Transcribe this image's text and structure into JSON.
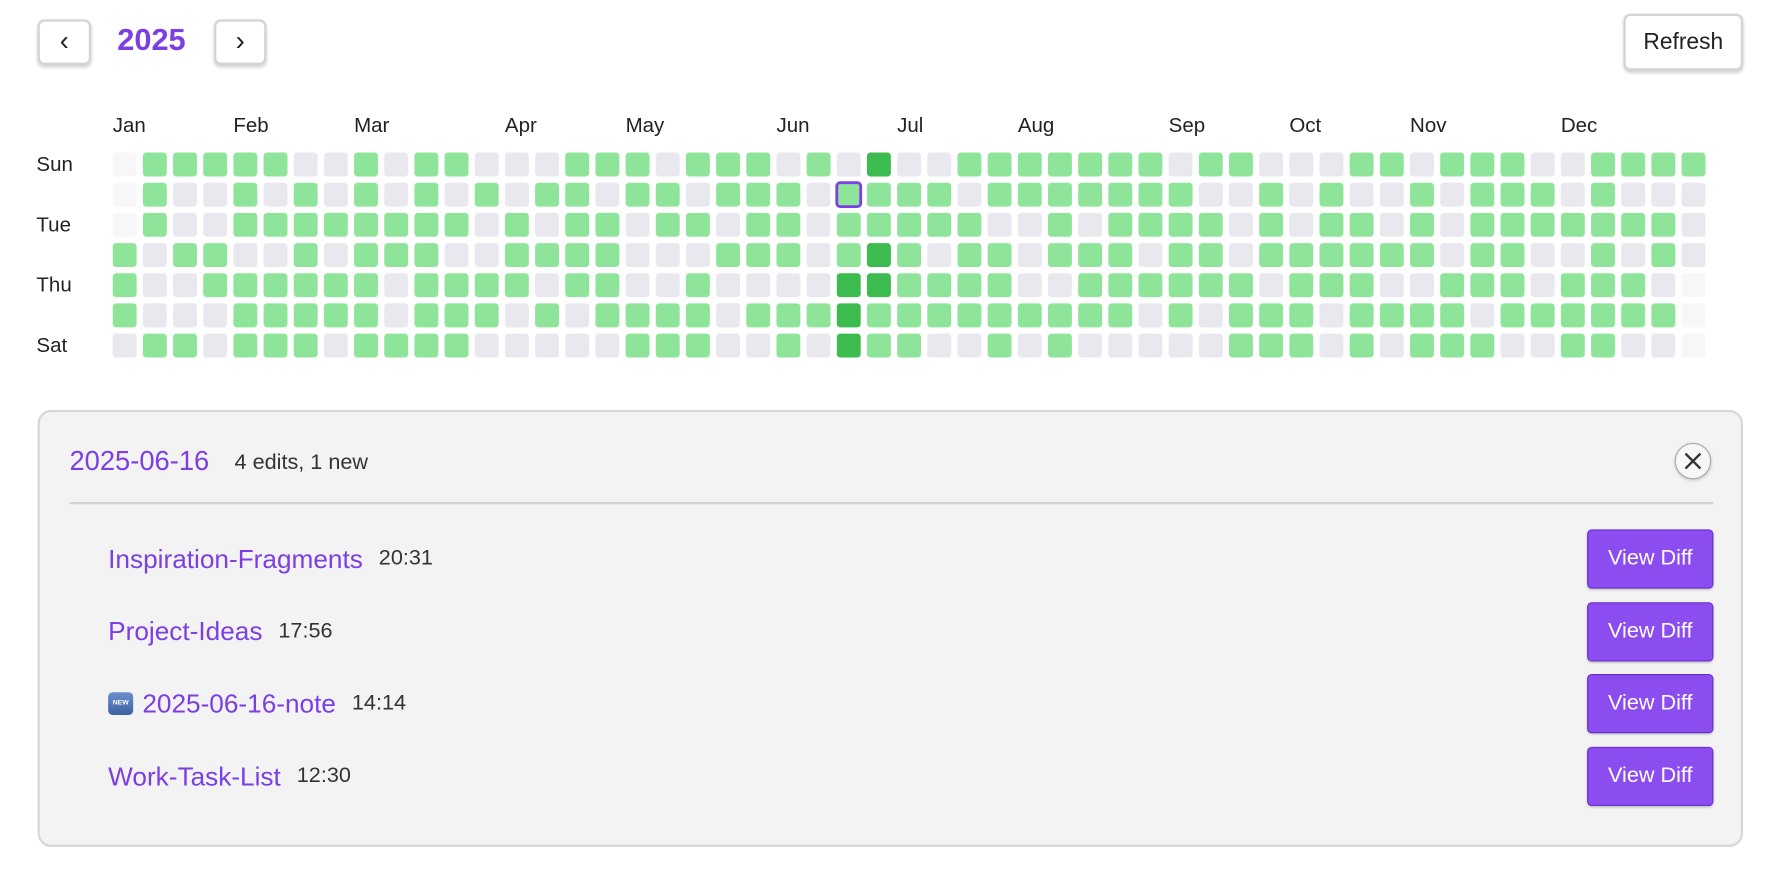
{
  "header": {
    "year": 2025,
    "refresh_label": "Refresh"
  },
  "heatmap": {
    "months": [
      "Jan",
      "Feb",
      "Mar",
      "Apr",
      "May",
      "Jun",
      "Jul",
      "Aug",
      "Sep",
      "Oct",
      "Nov",
      "Dec"
    ],
    "day_labels": [
      "Sun",
      "Tue",
      "Thu",
      "Sat"
    ],
    "level_colors": [
      "#e8e8ee",
      "#8ee59a",
      "#3cbb4f"
    ],
    "levels": [
      [
        null,
        1,
        1,
        1,
        1,
        1,
        0,
        0,
        1,
        0,
        1,
        1,
        0,
        0,
        0,
        1,
        1,
        1,
        0,
        1,
        1,
        1,
        0,
        1,
        0,
        2,
        0,
        0,
        1,
        1,
        1,
        1,
        1,
        1,
        1,
        0,
        1,
        1,
        0,
        0,
        0,
        1,
        1,
        0,
        1,
        1,
        1,
        0,
        0,
        1,
        1,
        1,
        1
      ],
      [
        null,
        1,
        0,
        0,
        1,
        0,
        1,
        0,
        1,
        0,
        1,
        0,
        1,
        0,
        1,
        1,
        0,
        1,
        1,
        0,
        1,
        1,
        1,
        0,
        1,
        1,
        1,
        1,
        0,
        1,
        1,
        1,
        1,
        1,
        1,
        1,
        0,
        0,
        1,
        0,
        1,
        0,
        0,
        1,
        0,
        1,
        1,
        1,
        0,
        1,
        0,
        0,
        0
      ],
      [
        null,
        1,
        0,
        0,
        1,
        1,
        1,
        1,
        1,
        1,
        1,
        1,
        0,
        1,
        0,
        1,
        1,
        0,
        1,
        1,
        0,
        1,
        1,
        0,
        1,
        1,
        1,
        1,
        1,
        0,
        0,
        1,
        0,
        1,
        1,
        1,
        1,
        0,
        1,
        0,
        1,
        1,
        0,
        1,
        0,
        1,
        1,
        1,
        1,
        1,
        1,
        1,
        0
      ],
      [
        1,
        0,
        1,
        1,
        0,
        0,
        1,
        0,
        1,
        1,
        1,
        0,
        0,
        1,
        1,
        1,
        1,
        0,
        0,
        0,
        1,
        1,
        1,
        0,
        1,
        2,
        1,
        0,
        1,
        1,
        0,
        1,
        1,
        1,
        0,
        1,
        1,
        0,
        1,
        1,
        1,
        1,
        1,
        1,
        0,
        1,
        1,
        0,
        0,
        1,
        0,
        1,
        0
      ],
      [
        1,
        0,
        0,
        1,
        1,
        1,
        1,
        1,
        1,
        0,
        1,
        1,
        1,
        1,
        0,
        1,
        1,
        0,
        0,
        1,
        0,
        0,
        0,
        0,
        2,
        2,
        1,
        1,
        1,
        1,
        0,
        0,
        1,
        1,
        1,
        1,
        1,
        1,
        0,
        1,
        1,
        1,
        0,
        0,
        1,
        1,
        1,
        0,
        1,
        1,
        1,
        0,
        null
      ],
      [
        1,
        0,
        0,
        0,
        1,
        1,
        1,
        1,
        1,
        0,
        1,
        1,
        1,
        0,
        1,
        0,
        1,
        1,
        1,
        1,
        0,
        1,
        1,
        1,
        2,
        1,
        1,
        1,
        1,
        1,
        1,
        1,
        1,
        1,
        0,
        1,
        0,
        1,
        1,
        1,
        0,
        1,
        1,
        1,
        1,
        0,
        1,
        1,
        1,
        1,
        1,
        1,
        null
      ],
      [
        0,
        1,
        1,
        0,
        1,
        1,
        1,
        0,
        1,
        1,
        1,
        1,
        0,
        0,
        0,
        0,
        0,
        1,
        1,
        1,
        0,
        0,
        1,
        0,
        2,
        1,
        1,
        0,
        0,
        1,
        0,
        1,
        0,
        0,
        0,
        0,
        0,
        1,
        1,
        1,
        0,
        1,
        0,
        1,
        1,
        1,
        0,
        0,
        1,
        1,
        0,
        0,
        null
      ]
    ]
  },
  "details": {
    "date": "2025-06-16",
    "summary": "4 edits, 1 new",
    "button_label": "View Diff",
    "items": [
      {
        "name": "Inspiration-Fragments",
        "time": "20:31",
        "new": false
      },
      {
        "name": "Project-Ideas",
        "time": "17:56",
        "new": false
      },
      {
        "name": "2025-06-16-note",
        "time": "14:14",
        "new": true
      },
      {
        "name": "Work-Task-List",
        "time": "12:30",
        "new": false
      }
    ]
  }
}
